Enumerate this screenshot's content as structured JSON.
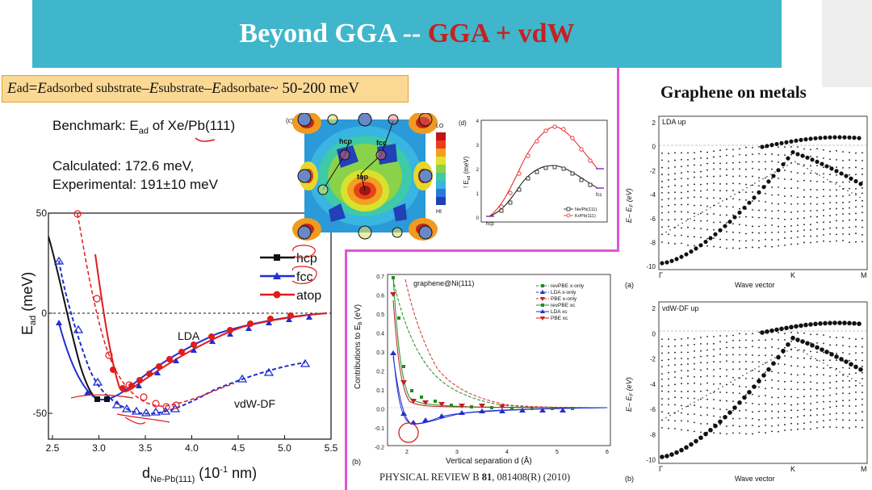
{
  "title": {
    "part1": "Beyond GGA -- ",
    "part2": "GGA + vdW"
  },
  "formula": {
    "E": "E",
    "ad": "ad",
    "eq": " = ",
    "sub1": "adsorbed substrate",
    "minus": " – ",
    "sub2": "substrate",
    "sub3": "adsorbate",
    "tail": " ~ 50-200 meV"
  },
  "benchmark": {
    "prefix": "Benchmark: E",
    "sub": "ad",
    "suffix": " of Xe/Pb(111)"
  },
  "calculated": "Calculated: 172.6 meV,",
  "experimental": "Experimental: 191±10 meV",
  "graphene_title": "Graphene on metals",
  "citation": {
    "journal": "PHYSICAL REVIEW B ",
    "volume": "81",
    "rest": ", 081408(R) (2010)"
  },
  "main_plot": {
    "ylabel_main": "E",
    "ylabel_sub": "ad",
    "ylabel_unit": " (meV)",
    "xlabel_main": "d",
    "xlabel_sub": "Ne-Pb(111)",
    "xlabel_unit": " (10",
    "xlabel_exp": "-1",
    "xlabel_end": " nm)",
    "yticks": [
      "50",
      "0",
      "-50"
    ],
    "xticks": [
      "2.5",
      "3.0",
      "3.5",
      "4.0",
      "4.5",
      "5.0",
      "5.5"
    ],
    "lda_label": "LDA",
    "vdw_label": "vdW-DF",
    "legend": [
      "hcp",
      "fcc",
      "atop"
    ]
  },
  "potential_map": {
    "label": "(c)",
    "lo": "LO",
    "hi": "HI",
    "hcp": "hcp",
    "fcc": "fcc",
    "top": "top"
  },
  "path_plot": {
    "label": "(d)",
    "ylabel": "! E",
    "ylabel_sub": "ad",
    "ylabel_unit": " (meV)",
    "yticks": [
      "4",
      "3",
      "2",
      "1",
      "0"
    ],
    "start": "hcp",
    "end": "fcc",
    "legend": [
      "Ne/Pb(111)",
      "Kr/Pb(111)"
    ]
  },
  "contrib_plot": {
    "label": "(b)",
    "inner": "graphene@Ni(111)",
    "ylabel": "Contributions to E",
    "ylabel_sub": "b",
    "ylabel_unit": " (eV)",
    "xlabel": "Vertical separation d (Å)",
    "yticks": [
      "0.7",
      "0.6",
      "0.5",
      "0.4",
      "0.3",
      "0.2",
      "0.1",
      "0.0",
      "-0.1",
      "-0.2"
    ],
    "xticks": [
      "2",
      "3",
      "4",
      "5",
      "6"
    ],
    "legend": [
      "revPBE x-only",
      "LDA x-only",
      "PBE x-only",
      "revPBE xc",
      "LDA xc",
      "PBE xc"
    ]
  },
  "band_top": {
    "label": "(a)",
    "inner": "LDA up",
    "ylabel": "E– E",
    "ylabel_sub": "F",
    "ylabel_unit": " (eV)",
    "xlabel": "Wave vector",
    "yticks": [
      "2",
      "0",
      "-2",
      "-4",
      "-6",
      "-8",
      "-10"
    ],
    "k": [
      "Γ",
      "K",
      "M"
    ]
  },
  "band_bottom": {
    "label": "(b)",
    "inner": "vdW-DF up",
    "ylabel": "E– E",
    "ylabel_sub": "F",
    "ylabel_unit": " (eV)",
    "xlabel": "Wave vector",
    "yticks": [
      "2",
      "0",
      "-2",
      "-4",
      "-6",
      "-8",
      "-10"
    ],
    "k": [
      "Γ",
      "K",
      "M"
    ]
  },
  "colors": {
    "banner": "#3fb6cb",
    "accent": "#c81f1f",
    "formula_bg": "#fbd995",
    "divider": "#e055d6",
    "hcp": "#111111",
    "fcc": "#1f2fd0",
    "atop": "#e21b1b"
  }
}
